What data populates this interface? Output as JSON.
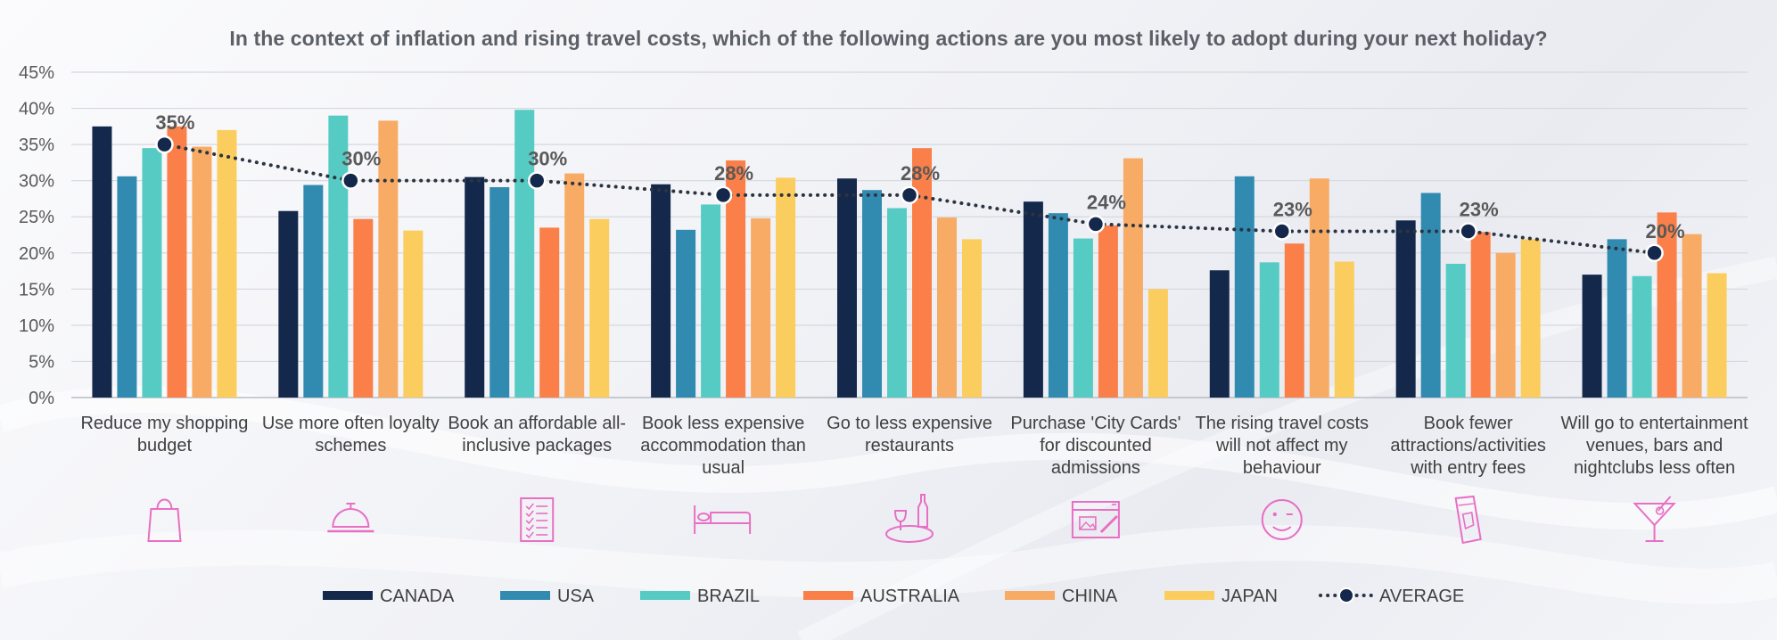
{
  "chart_data": {
    "type": "bar",
    "title": "In the context of inflation and rising travel costs, which of the following actions are you most likely to adopt during your next holiday?",
    "categories": [
      [
        "Reduce my shopping",
        "budget"
      ],
      [
        "Use more often loyalty",
        "schemes"
      ],
      [
        "Book an affordable all-",
        "inclusive packages"
      ],
      [
        "Book less expensive",
        "accommodation than",
        "usual"
      ],
      [
        "Go to less expensive",
        "restaurants"
      ],
      [
        "Purchase 'City Cards'",
        "for discounted",
        "admissions"
      ],
      [
        "The rising travel costs",
        "will not affect my",
        "behaviour"
      ],
      [
        "Book fewer",
        "attractions/activities",
        "with entry fees"
      ],
      [
        "Will go to entertainment",
        "venues, bars and",
        "nightclubs less often"
      ]
    ],
    "category_icons": [
      "shopping-bag-icon",
      "service-bell-icon",
      "checklist-icon",
      "bed-icon",
      "wine-dinner-icon",
      "city-card-icon",
      "smiley-wink-icon",
      "ticket-icon",
      "cocktail-icon"
    ],
    "series": [
      {
        "name": "CANADA",
        "color": "#14284b",
        "values": [
          37.5,
          25.8,
          30.5,
          29.5,
          30.3,
          27.1,
          17.6,
          24.5,
          17.0
        ]
      },
      {
        "name": "USA",
        "color": "#318bb1",
        "values": [
          30.6,
          29.4,
          29.1,
          23.2,
          28.7,
          25.5,
          30.6,
          28.3,
          21.9
        ]
      },
      {
        "name": "BRAZIL",
        "color": "#56cbc3",
        "values": [
          34.5,
          39.0,
          39.8,
          26.7,
          26.2,
          22.0,
          18.7,
          18.5,
          16.8
        ]
      },
      {
        "name": "AUSTRALIA",
        "color": "#fa7f49",
        "values": [
          37.5,
          24.7,
          23.5,
          32.8,
          34.5,
          23.8,
          21.3,
          22.9,
          25.6
        ]
      },
      {
        "name": "CHINA",
        "color": "#f8ab65",
        "values": [
          34.7,
          38.3,
          31.0,
          24.8,
          24.9,
          33.1,
          30.3,
          20.0,
          22.6
        ]
      },
      {
        "name": "JAPAN",
        "color": "#fbcd5e",
        "values": [
          37.0,
          23.1,
          24.7,
          30.4,
          21.9,
          15.0,
          18.8,
          21.9,
          17.2
        ]
      }
    ],
    "average": {
      "name": "AVERAGE",
      "color": "#2b3440",
      "values": [
        35,
        30,
        30,
        28,
        28,
        24,
        23,
        23,
        20
      ],
      "labels": [
        "35%",
        "30%",
        "30%",
        "28%",
        "28%",
        "24%",
        "23%",
        "23%",
        "20%"
      ]
    },
    "y_ticks": [
      "0%",
      "5%",
      "10%",
      "15%",
      "20%",
      "25%",
      "30%",
      "35%",
      "40%",
      "45%"
    ],
    "ylim": [
      0,
      45
    ],
    "ylabel": "",
    "xlabel": "",
    "grid": true,
    "legend_position": "bottom",
    "icon_color": "#e86fc4"
  }
}
